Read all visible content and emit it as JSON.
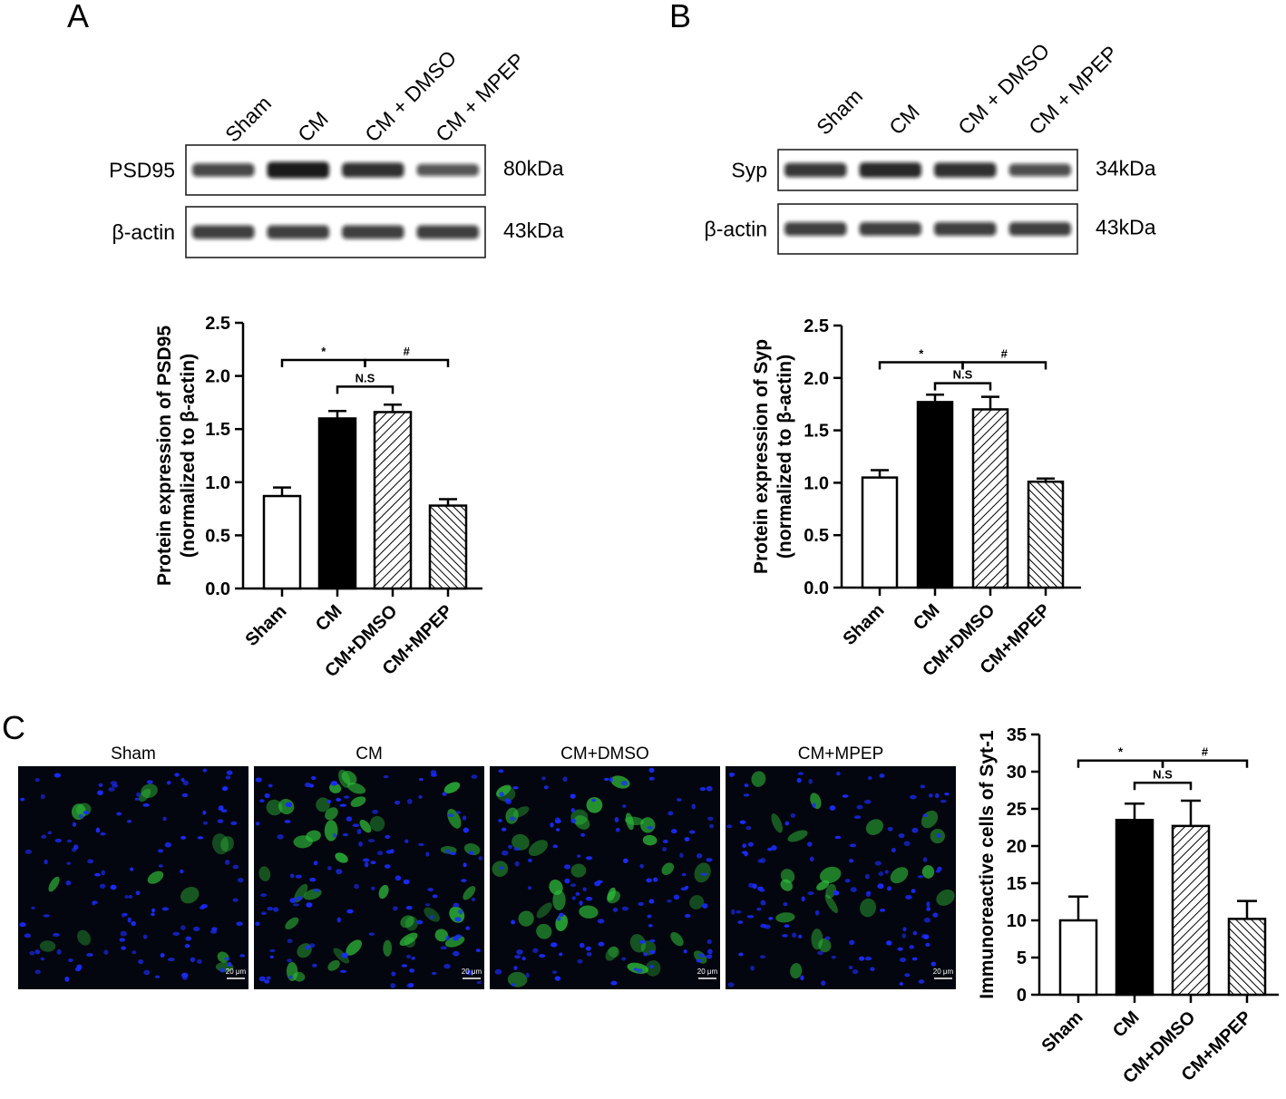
{
  "panel_labels": [
    "A",
    "B",
    "C"
  ],
  "blots": [
    {
      "lanes": [
        "Sham",
        "CM",
        "CM + DMSO",
        "CM + MPEP"
      ],
      "rows": [
        {
          "protein": "PSD95",
          "size": "80kDa",
          "intensity": [
            0.7,
            1.0,
            0.85,
            0.6
          ]
        },
        {
          "protein": "β-actin",
          "size": "43kDa",
          "intensity": [
            0.75,
            0.75,
            0.75,
            0.75
          ]
        }
      ]
    },
    {
      "lanes": [
        "Sham",
        "CM",
        "CM + DMSO",
        "CM + MPEP"
      ],
      "rows": [
        {
          "protein": "Syp",
          "size": "34kDa",
          "intensity": [
            0.8,
            0.9,
            0.85,
            0.65
          ]
        },
        {
          "protein": "β-actin",
          "size": "43kDa",
          "intensity": [
            0.75,
            0.75,
            0.75,
            0.75
          ]
        }
      ]
    }
  ],
  "micrographs": {
    "labels": [
      "Sham",
      "CM",
      "CM+DMSO",
      "CM+MPEP"
    ],
    "scale_bar": "20 μm",
    "green_density": [
      0.2,
      1.0,
      0.9,
      0.45
    ],
    "colors": {
      "background": "#04060f",
      "nuclei": "#1a2cff",
      "cells": "#2fbf3a"
    }
  },
  "chart_data": [
    {
      "type": "bar",
      "categories": [
        "Sham",
        "CM",
        "CM+DMSO",
        "CM+MPEP"
      ],
      "values": [
        0.87,
        1.6,
        1.66,
        0.78
      ],
      "errors": [
        0.08,
        0.07,
        0.07,
        0.06
      ],
      "ylabel": [
        "Protein expression of PSD95",
        "(normalized to β-actin)"
      ],
      "ylim": [
        0,
        2.5
      ],
      "yticks": [
        0.0,
        0.5,
        1.0,
        1.5,
        2.0,
        2.5
      ],
      "tick_format": 1,
      "fills": [
        "white",
        "black",
        "hatch-right",
        "hatch-left"
      ],
      "brackets": [
        {
          "from": 0,
          "to": 1.5,
          "label": "*",
          "level": 2.15
        },
        {
          "from": 1.5,
          "to": 3,
          "label": "#",
          "level": 2.15
        },
        {
          "from": 1,
          "to": 2,
          "label": "N.S",
          "level": 1.9
        }
      ]
    },
    {
      "type": "bar",
      "categories": [
        "Sham",
        "CM",
        "CM+DMSO",
        "CM+MPEP"
      ],
      "values": [
        1.05,
        1.77,
        1.7,
        1.01
      ],
      "errors": [
        0.07,
        0.07,
        0.12,
        0.03
      ],
      "ylabel": [
        "Protein expression of Syp",
        "(normalized to β-actin)"
      ],
      "ylim": [
        0,
        2.5
      ],
      "yticks": [
        0.0,
        0.5,
        1.0,
        1.5,
        2.0,
        2.5
      ],
      "tick_format": 1,
      "fills": [
        "white",
        "black",
        "hatch-right",
        "hatch-left"
      ],
      "brackets": [
        {
          "from": 0,
          "to": 1.5,
          "label": "*",
          "level": 2.15
        },
        {
          "from": 1.5,
          "to": 3,
          "label": "#",
          "level": 2.15
        },
        {
          "from": 1,
          "to": 2,
          "label": "N.S",
          "level": 1.95
        }
      ]
    },
    {
      "type": "bar",
      "categories": [
        "Sham",
        "CM",
        "CM+DMSO",
        "CM+MPEP"
      ],
      "values": [
        10.0,
        23.5,
        22.7,
        10.2
      ],
      "errors": [
        3.2,
        2.2,
        3.4,
        2.4
      ],
      "ylabel": [
        "Immunoreactive cells of Syt-1"
      ],
      "ylim": [
        0,
        35
      ],
      "yticks": [
        0,
        5,
        10,
        15,
        20,
        25,
        30,
        35
      ],
      "tick_format": 0,
      "fills": [
        "white",
        "black",
        "hatch-right",
        "hatch-left"
      ],
      "brackets": [
        {
          "from": 0,
          "to": 1.5,
          "label": "*",
          "level": 31.5
        },
        {
          "from": 1.5,
          "to": 3,
          "label": "#",
          "level": 31.5
        },
        {
          "from": 1,
          "to": 2,
          "label": "N.S",
          "level": 28.5
        }
      ]
    }
  ]
}
